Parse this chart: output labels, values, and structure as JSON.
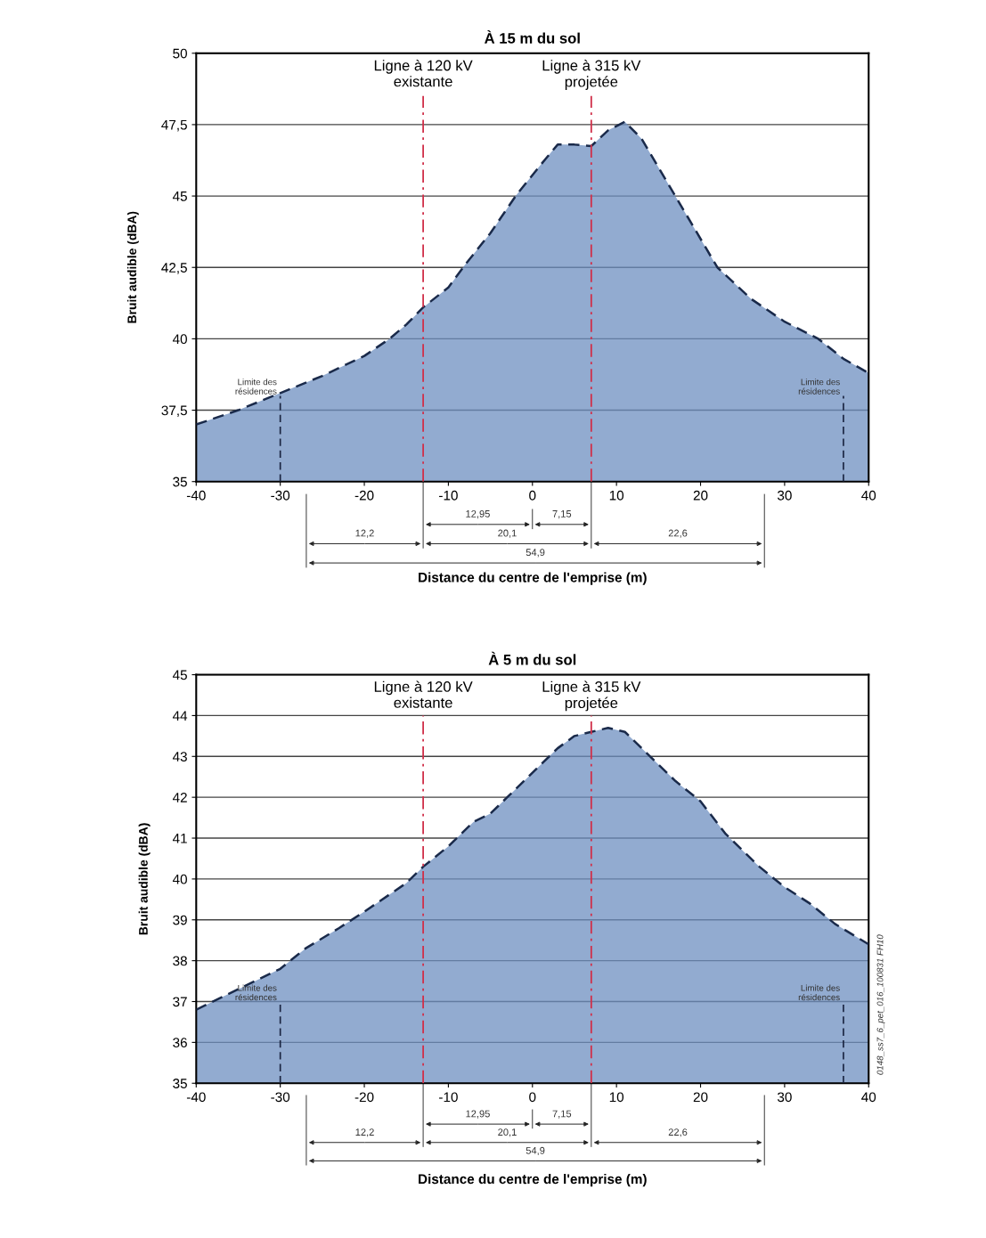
{
  "chart_data": [
    {
      "type": "area",
      "title": "À 15 m du sol",
      "xlabel": "Distance du centre de l'emprise (m)",
      "ylabel": "Bruit audible (dBA)",
      "x": [
        -40,
        -35,
        -30,
        -25,
        -20,
        -17,
        -15,
        -13,
        -10,
        -8,
        -5,
        -2,
        1,
        3,
        5,
        7,
        9,
        11,
        13,
        16,
        19,
        22,
        26,
        30,
        34,
        37,
        40
      ],
      "series": [
        {
          "color": "#6d8fc0",
          "values": [
            37.0,
            37.5,
            38.1,
            38.7,
            39.4,
            40.0,
            40.5,
            41.1,
            41.8,
            42.6,
            43.7,
            45.0,
            46.1,
            46.8,
            46.8,
            46.75,
            47.3,
            47.6,
            47.0,
            45.5,
            44.0,
            42.5,
            41.4,
            40.6,
            40.0,
            39.3,
            38.8
          ]
        }
      ],
      "line_style": "dashed",
      "grid": "y",
      "legend": false,
      "xlim": [
        -40,
        40
      ],
      "xticks": [
        -40,
        -30,
        -20,
        -10,
        0,
        10,
        20,
        30,
        40
      ],
      "ylim": [
        35,
        50
      ],
      "yticks": [
        35,
        {
          "value": 37.5,
          "label": "37,5"
        },
        40,
        {
          "value": 42.5,
          "label": "42,5"
        },
        45,
        {
          "value": 47.5,
          "label": "47,5"
        },
        50
      ],
      "ref_lines": [
        {
          "axis": "x",
          "value": -13,
          "label": "Ligne à 120 kV\nexistante",
          "color": "#d0304a",
          "line_style": "dashdot"
        },
        {
          "axis": "x",
          "value": 7,
          "label": "Ligne à 315 kV\nprojetée",
          "color": "#d0304a",
          "line_style": "dashdot"
        },
        {
          "axis": "x",
          "value": -30,
          "label": "Limite des\nrésidences",
          "color": "#1a2440",
          "line_style": "dashed"
        },
        {
          "axis": "x",
          "value": 37,
          "label": "Limite des\nrésidences",
          "color": "#1a2440",
          "line_style": "dashed"
        }
      ],
      "annotations": [
        "12,95",
        "7,15",
        "12,2",
        "20,1",
        "22,6",
        "54,9"
      ]
    },
    {
      "type": "area",
      "title": "À 5 m du sol",
      "xlabel": "Distance du centre de l'emprise (m)",
      "ylabel": "Bruit audible (dBA)",
      "x": [
        -40,
        -35,
        -30,
        -27,
        -23,
        -20,
        -15,
        -13,
        -10,
        -7,
        -5,
        -3,
        0,
        3,
        5,
        7,
        9,
        11,
        14,
        17,
        20,
        23,
        27,
        30,
        33,
        36,
        40
      ],
      "series": [
        {
          "color": "#6d8fc0",
          "values": [
            36.8,
            37.3,
            37.8,
            38.3,
            38.8,
            39.2,
            39.9,
            40.3,
            40.8,
            41.4,
            41.6,
            42.0,
            42.6,
            43.2,
            43.5,
            43.6,
            43.7,
            43.6,
            43.0,
            42.4,
            41.9,
            41.1,
            40.3,
            39.8,
            39.4,
            38.9,
            38.4
          ]
        }
      ],
      "line_style": "dashed",
      "grid": "y",
      "legend": false,
      "xlim": [
        -40,
        40
      ],
      "xticks": [
        -40,
        -30,
        -20,
        -10,
        0,
        10,
        20,
        30,
        40
      ],
      "ylim": [
        35,
        45
      ],
      "yticks": [
        35,
        36,
        37,
        38,
        39,
        40,
        41,
        42,
        43,
        44,
        45
      ],
      "ref_lines": [
        {
          "axis": "x",
          "value": -13,
          "label": "Ligne à 120 kV\nexistante",
          "color": "#d0304a",
          "line_style": "dashdot"
        },
        {
          "axis": "x",
          "value": 7,
          "label": "Ligne à 315 kV\nprojetée",
          "color": "#d0304a",
          "line_style": "dashdot"
        },
        {
          "axis": "x",
          "value": -30,
          "label": "Limite des\nrésidences",
          "color": "#1a2440",
          "line_style": "dashed"
        },
        {
          "axis": "x",
          "value": 37,
          "label": "Limite des\nrésidences",
          "color": "#1a2440",
          "line_style": "dashed"
        }
      ],
      "annotations": [
        "12,95",
        "7,15",
        "12,2",
        "20,1",
        "22,6",
        "54,9",
        "0148_ss7_6_pet_016_100831 FH10"
      ]
    }
  ]
}
